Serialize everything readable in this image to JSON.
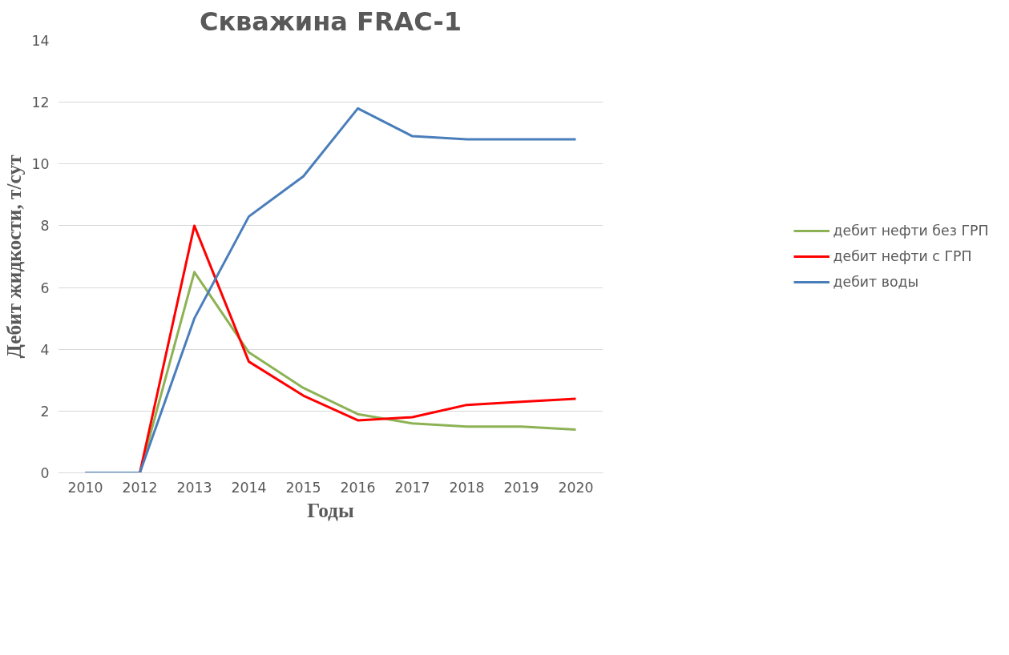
{
  "chart_data": {
    "type": "line",
    "title": "Скважина FRAC-1",
    "xlabel": "Годы",
    "ylabel": "Дебит жидкости, т/сут",
    "categories": [
      "2010",
      "2012",
      "2013",
      "2014",
      "2015",
      "2016",
      "2017",
      "2018",
      "2019",
      "2020"
    ],
    "series": [
      {
        "name": "дебит нефти без ГРП",
        "color": "#8db255",
        "values": [
          0,
          0,
          6.5,
          3.9,
          2.75,
          1.9,
          1.6,
          1.5,
          1.5,
          1.4
        ]
      },
      {
        "name": "дебит нефти с ГРП",
        "color": "#ff0000",
        "values": [
          0,
          0,
          8,
          3.6,
          2.5,
          1.7,
          1.8,
          2.2,
          2.3,
          2.4
        ]
      },
      {
        "name": "дебит воды",
        "color": "#4a7ebb",
        "values": [
          0,
          0,
          5,
          8.3,
          9.6,
          11.8,
          10.9,
          10.8,
          10.8,
          10.8
        ]
      }
    ],
    "ylim": [
      0,
      14
    ],
    "yticks": [
      0,
      2,
      4,
      6,
      8,
      10,
      12,
      14
    ],
    "grid": "y",
    "legend": "right",
    "marker": "none",
    "line_style": "solid"
  }
}
